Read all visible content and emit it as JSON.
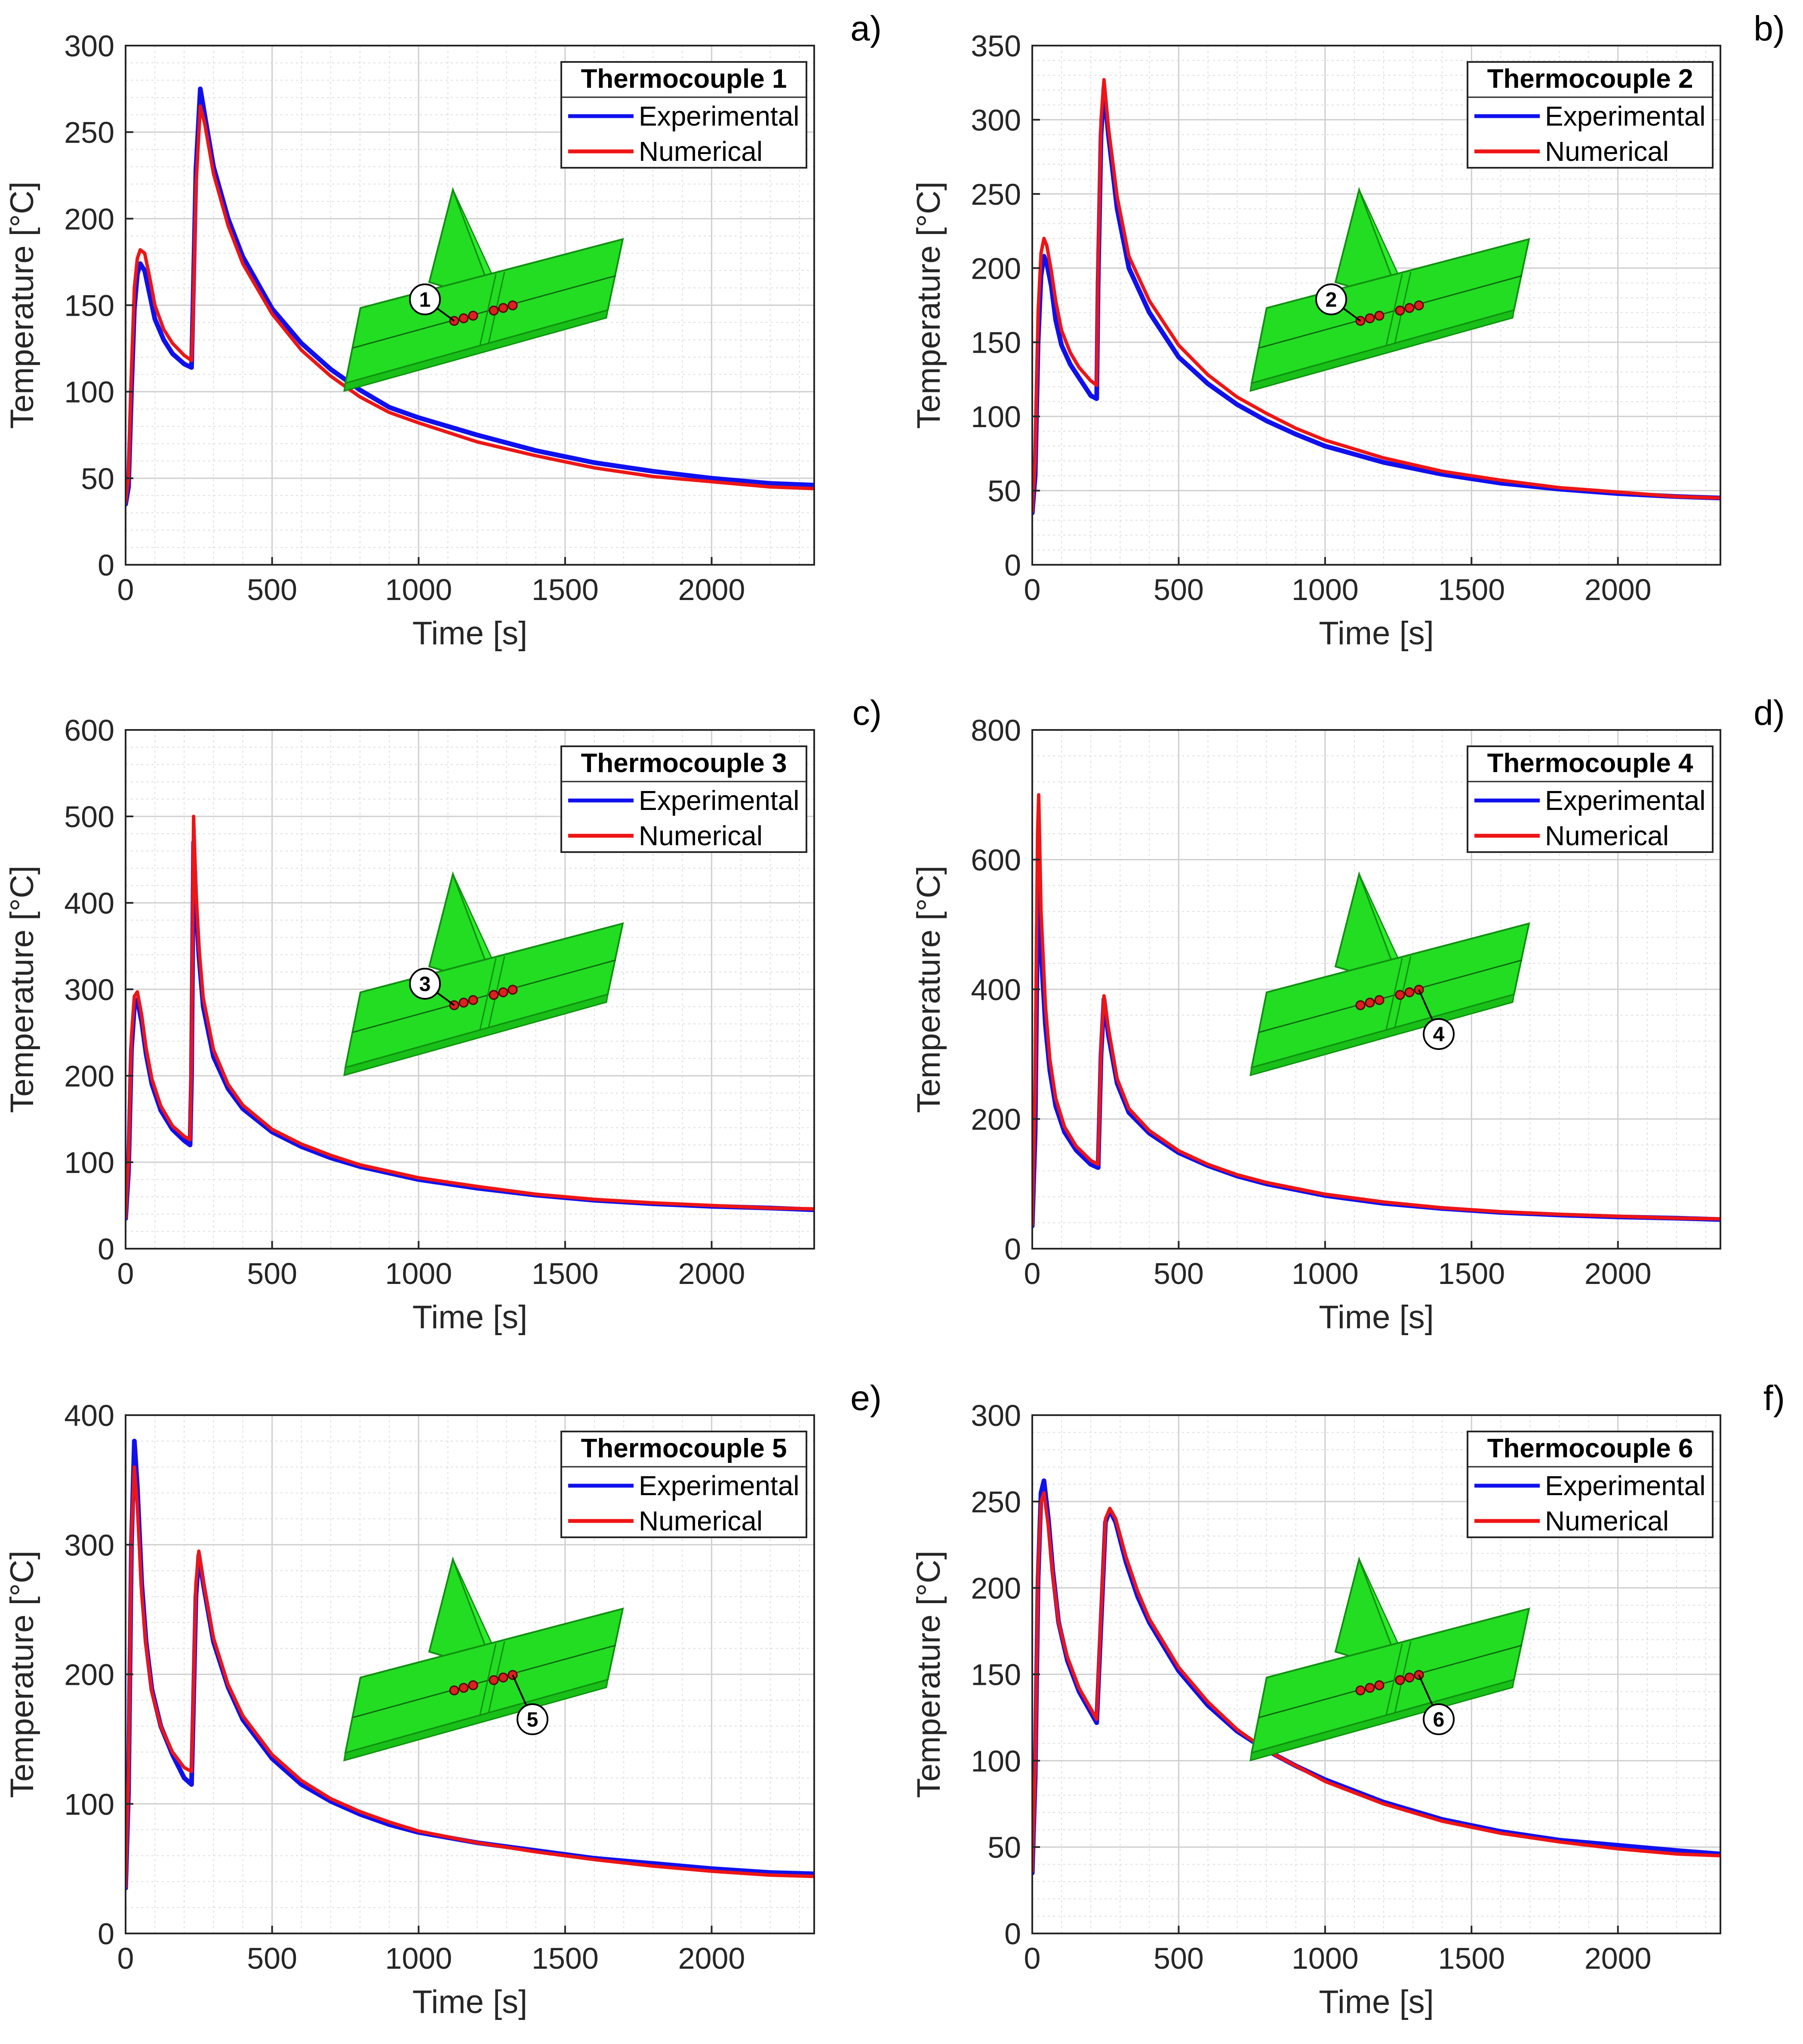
{
  "figure": {
    "legend_entry_labels": [
      "Experimental",
      "Numerical"
    ],
    "colors": {
      "experimental": "#1010ee",
      "numerical": "#ee1515",
      "model": "#22dd22",
      "model_edge": "#109010",
      "sensor": "#dd2020"
    }
  },
  "chart_data": [
    {
      "type": "line",
      "panel": "a)",
      "title": "Thermocouple 1",
      "xlabel": "Time [s]",
      "ylabel": "Temperature [°C]",
      "xlim": [
        0,
        2350
      ],
      "ylim": [
        0,
        300
      ],
      "xticks": [
        0,
        500,
        1000,
        1500,
        2000
      ],
      "yticks": [
        0,
        50,
        100,
        150,
        200,
        250,
        300
      ],
      "grid": true,
      "legend": "top-right",
      "inset_marker": "1",
      "inset_label_pos": "above",
      "x": [
        0,
        10,
        20,
        30,
        40,
        50,
        65,
        80,
        100,
        130,
        160,
        200,
        225,
        230,
        240,
        255,
        270,
        300,
        350,
        400,
        500,
        600,
        700,
        800,
        900,
        1000,
        1200,
        1400,
        1600,
        1800,
        2000,
        2200,
        2350
      ],
      "series": [
        {
          "name": "Experimental",
          "values": [
            35,
            45,
            100,
            148,
            168,
            174,
            170,
            158,
            142,
            130,
            122,
            116,
            114,
            150,
            228,
            275,
            260,
            230,
            200,
            178,
            148,
            128,
            113,
            101,
            91,
            85,
            75,
            66,
            59,
            54,
            50,
            47,
            46
          ]
        },
        {
          "name": "Numerical",
          "values": [
            36,
            50,
            112,
            160,
            177,
            182,
            180,
            168,
            150,
            136,
            128,
            121,
            118,
            142,
            218,
            265,
            255,
            226,
            196,
            174,
            145,
            124,
            109,
            97,
            88,
            82,
            71,
            63,
            56,
            51,
            48,
            45,
            44
          ]
        }
      ]
    },
    {
      "type": "line",
      "panel": "b)",
      "title": "Thermocouple 2",
      "xlabel": "Time [s]",
      "ylabel": "Temperature [°C]",
      "xlim": [
        0,
        2350
      ],
      "ylim": [
        0,
        350
      ],
      "xticks": [
        0,
        500,
        1000,
        1500,
        2000
      ],
      "yticks": [
        0,
        50,
        100,
        150,
        200,
        250,
        300,
        350
      ],
      "grid": true,
      "legend": "top-right",
      "inset_marker": "2",
      "inset_label_pos": "above",
      "x": [
        0,
        10,
        20,
        30,
        40,
        50,
        65,
        80,
        100,
        130,
        160,
        200,
        220,
        225,
        235,
        245,
        260,
        290,
        330,
        400,
        500,
        600,
        700,
        800,
        900,
        1000,
        1200,
        1400,
        1600,
        1800,
        2000,
        2200,
        2350
      ],
      "series": [
        {
          "name": "Experimental",
          "values": [
            35,
            60,
            150,
            195,
            208,
            203,
            188,
            165,
            148,
            135,
            126,
            114,
            112,
            190,
            290,
            322,
            290,
            240,
            200,
            170,
            140,
            122,
            108,
            97,
            88,
            80,
            69,
            61,
            55,
            51,
            48,
            46,
            45
          ]
        },
        {
          "name": "Numerical",
          "values": [
            36,
            70,
            170,
            210,
            220,
            215,
            198,
            178,
            158,
            143,
            133,
            124,
            121,
            200,
            300,
            327,
            295,
            248,
            208,
            178,
            148,
            128,
            113,
            102,
            92,
            84,
            72,
            63,
            57,
            52,
            49,
            46,
            45
          ]
        }
      ]
    },
    {
      "type": "line",
      "panel": "c)",
      "title": "Thermocouple 3",
      "xlabel": "Time [s]",
      "ylabel": "Temperature [°C]",
      "xlim": [
        0,
        2350
      ],
      "ylim": [
        0,
        600
      ],
      "xticks": [
        0,
        500,
        1000,
        1500,
        2000
      ],
      "yticks": [
        0,
        100,
        200,
        300,
        400,
        500,
        600
      ],
      "grid": true,
      "legend": "top-right",
      "inset_marker": "3",
      "inset_label_pos": "above",
      "x": [
        0,
        10,
        20,
        30,
        40,
        55,
        70,
        90,
        120,
        160,
        200,
        220,
        225,
        232,
        240,
        250,
        265,
        300,
        350,
        400,
        500,
        600,
        700,
        800,
        1000,
        1200,
        1400,
        1600,
        1800,
        2000,
        2200,
        2350
      ],
      "series": [
        {
          "name": "Experimental",
          "values": [
            35,
            90,
            230,
            280,
            288,
            262,
            225,
            190,
            160,
            138,
            125,
            120,
            200,
            470,
            400,
            340,
            280,
            222,
            185,
            162,
            135,
            118,
            105,
            95,
            80,
            70,
            62,
            56,
            52,
            49,
            47,
            45
          ]
        },
        {
          "name": "Numerical",
          "values": [
            36,
            100,
            245,
            292,
            297,
            270,
            232,
            196,
            165,
            142,
            130,
            126,
            220,
            500,
            415,
            350,
            290,
            230,
            190,
            166,
            138,
            121,
            108,
            97,
            82,
            72,
            63,
            57,
            53,
            50,
            47,
            46
          ]
        }
      ]
    },
    {
      "type": "line",
      "panel": "d)",
      "title": "Thermocouple 4",
      "xlabel": "Time [s]",
      "ylabel": "Temperature [°C]",
      "xlim": [
        0,
        2350
      ],
      "ylim": [
        0,
        800
      ],
      "xticks": [
        0,
        500,
        1000,
        1500,
        2000
      ],
      "yticks": [
        0,
        200,
        400,
        600,
        800
      ],
      "grid": true,
      "legend": "top-right",
      "inset_marker": "4",
      "inset_label_pos": "below",
      "x": [
        0,
        10,
        18,
        22,
        30,
        45,
        60,
        80,
        110,
        150,
        200,
        225,
        235,
        245,
        260,
        290,
        330,
        400,
        500,
        600,
        700,
        800,
        1000,
        1200,
        1400,
        1600,
        1800,
        2000,
        2200,
        2350
      ],
      "series": [
        {
          "name": "Experimental",
          "values": [
            35,
            180,
            520,
            570,
            460,
            345,
            275,
            220,
            180,
            152,
            130,
            125,
            300,
            385,
            330,
            255,
            210,
            178,
            148,
            128,
            112,
            100,
            82,
            70,
            62,
            56,
            52,
            49,
            47,
            45
          ]
        },
        {
          "name": "Numerical",
          "values": [
            36,
            250,
            640,
            700,
            520,
            375,
            292,
            232,
            188,
            158,
            136,
            130,
            310,
            390,
            340,
            262,
            216,
            182,
            151,
            130,
            114,
            102,
            84,
            72,
            63,
            57,
            53,
            50,
            47,
            46
          ]
        }
      ]
    },
    {
      "type": "line",
      "panel": "e)",
      "title": "Thermocouple 5",
      "xlabel": "Time [s]",
      "ylabel": "Temperature [°C]",
      "xlim": [
        0,
        2350
      ],
      "ylim": [
        0,
        400
      ],
      "xticks": [
        0,
        500,
        1000,
        1500,
        2000
      ],
      "yticks": [
        0,
        100,
        200,
        300,
        400
      ],
      "grid": true,
      "legend": "top-right",
      "inset_marker": "5",
      "inset_label_pos": "below",
      "x": [
        0,
        10,
        20,
        30,
        40,
        55,
        70,
        90,
        120,
        160,
        200,
        225,
        230,
        240,
        250,
        265,
        300,
        350,
        400,
        500,
        600,
        700,
        800,
        900,
        1000,
        1200,
        1400,
        1600,
        1800,
        2000,
        2200,
        2350
      ],
      "series": [
        {
          "name": "Experimental",
          "values": [
            35,
            110,
            300,
            380,
            345,
            270,
            225,
            188,
            160,
            138,
            120,
            115,
            160,
            260,
            292,
            270,
            225,
            190,
            165,
            135,
            115,
            102,
            92,
            84,
            78,
            70,
            64,
            58,
            54,
            50,
            47,
            46
          ]
        },
        {
          "name": "Numerical",
          "values": [
            36,
            120,
            305,
            360,
            330,
            262,
            222,
            186,
            160,
            140,
            128,
            125,
            170,
            270,
            295,
            272,
            228,
            192,
            168,
            138,
            118,
            104,
            94,
            86,
            79,
            70,
            63,
            57,
            52,
            48,
            45,
            44
          ]
        }
      ]
    },
    {
      "type": "line",
      "panel": "f)",
      "title": "Thermocouple 6",
      "xlabel": "Time [s]",
      "ylabel": "Temperature [°C]",
      "xlim": [
        0,
        2350
      ],
      "ylim": [
        0,
        300
      ],
      "xticks": [
        0,
        500,
        1000,
        1500,
        2000
      ],
      "yticks": [
        0,
        50,
        100,
        150,
        200,
        250,
        300
      ],
      "grid": true,
      "legend": "top-right",
      "inset_marker": "6",
      "inset_label_pos": "below",
      "x": [
        0,
        10,
        20,
        30,
        40,
        55,
        70,
        90,
        120,
        160,
        200,
        220,
        235,
        250,
        265,
        285,
        320,
        360,
        400,
        500,
        600,
        700,
        800,
        900,
        1000,
        1200,
        1400,
        1600,
        1800,
        2000,
        2200,
        2350
      ],
      "series": [
        {
          "name": "Experimental",
          "values": [
            35,
            90,
            205,
            255,
            262,
            240,
            210,
            180,
            158,
            140,
            128,
            122,
            180,
            238,
            245,
            238,
            215,
            195,
            180,
            152,
            132,
            117,
            106,
            97,
            89,
            76,
            66,
            59,
            54,
            51,
            48,
            46
          ]
        },
        {
          "name": "Numerical",
          "values": [
            36,
            95,
            210,
            250,
            255,
            236,
            208,
            180,
            160,
            142,
            130,
            124,
            185,
            240,
            246,
            240,
            218,
            198,
            182,
            154,
            134,
            118,
            106,
            97,
            88,
            75,
            65,
            58,
            53,
            49,
            46,
            45
          ]
        }
      ]
    }
  ]
}
